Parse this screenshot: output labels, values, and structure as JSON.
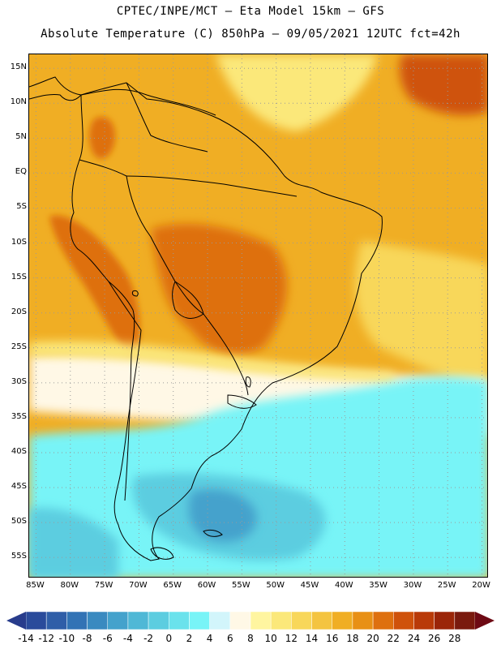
{
  "header": {
    "line1": "CPTEC/INPE/MCT —  Eta Model 15km — GFS",
    "line2": "Absolute Temperature (C) 850hPa — 09/05/2021 12UTC fct=42h"
  },
  "map": {
    "lat_labels": [
      "15N",
      "10N",
      "5N",
      "EQ",
      "5S",
      "10S",
      "15S",
      "20S",
      "25S",
      "30S",
      "35S",
      "40S",
      "45S",
      "50S",
      "55S"
    ],
    "lon_labels": [
      "85W",
      "80W",
      "75W",
      "70W",
      "65W",
      "60W",
      "55W",
      "50W",
      "45W",
      "40W",
      "35W",
      "30W",
      "25W",
      "20W"
    ],
    "extent": {
      "lon_min": -86,
      "lon_max": -19,
      "lat_min": -58,
      "lat_max": 17
    }
  },
  "colorbar": {
    "labels": [
      "-14",
      "-12",
      "-10",
      "-8",
      "-6",
      "-4",
      "-2",
      "0",
      "2",
      "4",
      "6",
      "8",
      "10",
      "12",
      "14",
      "16",
      "18",
      "20",
      "22",
      "24",
      "26",
      "28"
    ],
    "colors": {
      "below": "#283c8c",
      "bins": [
        "#2a4b9b",
        "#2f5ea8",
        "#3273b5",
        "#3a8ac0",
        "#44a2cc",
        "#4fb8d6",
        "#5ccde0",
        "#6ae2ec",
        "#78f4f7",
        "#d2f5fb",
        "#fff8e6",
        "#fff5a0",
        "#fbe87a",
        "#f8d75a",
        "#f4c440",
        "#f0ae24",
        "#e89015",
        "#de700f",
        "#cf520b",
        "#b93a08",
        "#9b2508",
        "#7a1a0e"
      ],
      "above": "#6e0a14"
    }
  },
  "colors": {
    "warm_base": "#f0ae24",
    "hot": "#de700f",
    "warmest": "#cf520b",
    "moderate": "#f8d75a",
    "mild": "#fbe87a",
    "cool_cream": "#fff8e6",
    "cold": "#78f4f7",
    "colder": "#5ccde0",
    "coldest": "#44a2cc",
    "coast": "#000000",
    "grid": "#9a9a9a"
  }
}
